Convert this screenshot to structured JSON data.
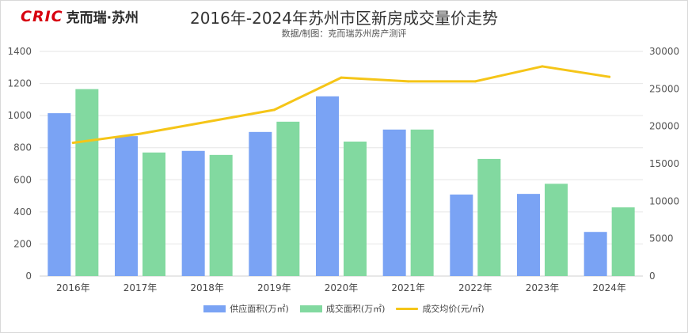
{
  "logo": {
    "mark": "CRIC",
    "text": "克而瑞·苏州"
  },
  "chart_data": {
    "type": "bar",
    "title": "2016年-2024年苏州市区新房成交量价走势",
    "subtitle": "数据/制图：克而瑞苏州房产测评",
    "categories": [
      "2016年",
      "2017年",
      "2018年",
      "2019年",
      "2020年",
      "2021年",
      "2022年",
      "2023年",
      "2024年"
    ],
    "series": [
      {
        "name": "供应面积(万㎡)",
        "type": "bar",
        "axis": "left",
        "color": "#7aa3f4",
        "values": [
          1015,
          872,
          780,
          898,
          1120,
          913,
          508,
          512,
          275
        ]
      },
      {
        "name": "成交面积(万㎡)",
        "type": "bar",
        "axis": "left",
        "color": "#82d9a0",
        "values": [
          1165,
          770,
          755,
          962,
          838,
          913,
          730,
          575,
          428
        ]
      },
      {
        "name": "成交均价(元/㎡)",
        "type": "line",
        "axis": "right",
        "color": "#f5c518",
        "values": [
          17800,
          19000,
          20600,
          22200,
          26500,
          26000,
          26000,
          28000,
          26600
        ]
      }
    ],
    "yleft": {
      "lim": [
        0,
        1400
      ],
      "ticks": [
        "0",
        "200",
        "400",
        "600",
        "800",
        "1000",
        "1200",
        "1400"
      ]
    },
    "yright": {
      "lim": [
        0,
        30000
      ],
      "ticks": [
        "0",
        "5000",
        "10000",
        "15000",
        "20000",
        "25000",
        "30000"
      ]
    },
    "grid": true,
    "legend_position": "bottom"
  }
}
